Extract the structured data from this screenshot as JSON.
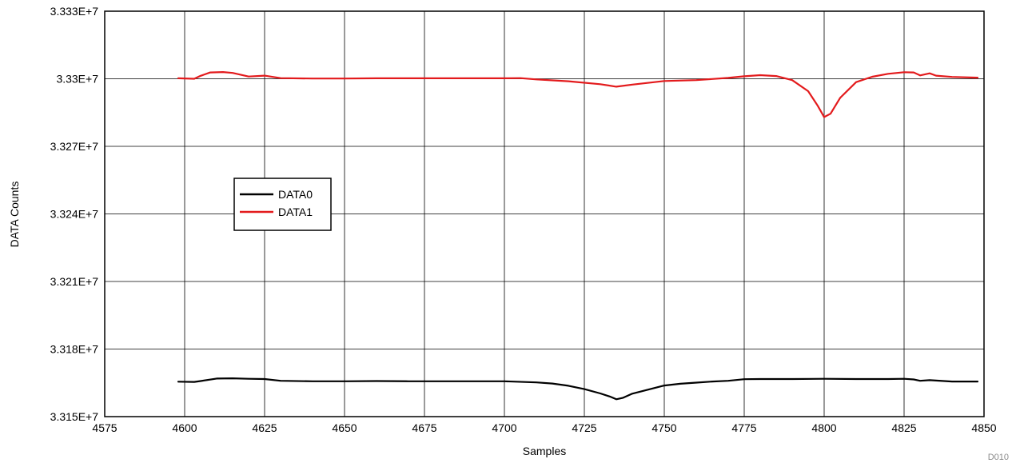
{
  "figure_id": "D010",
  "chart_data": {
    "type": "line",
    "title": "",
    "xlabel": "Samples",
    "ylabel": "DATA Counts",
    "xlim": [
      4575,
      4850
    ],
    "ylim": [
      33150000,
      33330000
    ],
    "x_ticks": [
      4575,
      4600,
      4625,
      4650,
      4675,
      4700,
      4725,
      4750,
      4775,
      4800,
      4825,
      4850
    ],
    "y_ticks": [
      33150000,
      33180000,
      33210000,
      33240000,
      33270000,
      33300000,
      33330000
    ],
    "x_tick_labels": [
      "4575",
      "4600",
      "4625",
      "4650",
      "4675",
      "4700",
      "4725",
      "4750",
      "4775",
      "4800",
      "4825",
      "4850"
    ],
    "y_tick_labels": [
      "3.315E+7",
      "3.318E+7",
      "3.321E+7",
      "3.324E+7",
      "3.327E+7",
      "3.33E+7",
      "3.333E+7"
    ],
    "grid": true,
    "legend": {
      "position": "center-left",
      "entries": [
        "DATA0",
        "DATA1"
      ]
    },
    "series": [
      {
        "name": "DATA0",
        "color": "#000000",
        "x": [
          4598,
          4603,
          4605,
          4610,
          4615,
          4620,
          4625,
          4630,
          4640,
          4650,
          4660,
          4670,
          4680,
          4690,
          4700,
          4710,
          4715,
          4720,
          4725,
          4730,
          4733,
          4735,
          4737,
          4740,
          4745,
          4750,
          4755,
          4760,
          4765,
          4770,
          4775,
          4780,
          4790,
          4800,
          4810,
          4820,
          4825,
          4828,
          4830,
          4833,
          4840,
          4848
        ],
        "y": [
          33165500,
          33165400,
          33165800,
          33166900,
          33167000,
          33166800,
          33166700,
          33165900,
          33165700,
          33165700,
          33165800,
          33165700,
          33165700,
          33165700,
          33165700,
          33165200,
          33164700,
          33163700,
          33162200,
          33160300,
          33158900,
          33157700,
          33158300,
          33160200,
          33162000,
          33163800,
          33164600,
          33165100,
          33165600,
          33165900,
          33166600,
          33166700,
          33166700,
          33166800,
          33166700,
          33166700,
          33166800,
          33166500,
          33165900,
          33166200,
          33165600,
          33165600
        ]
      },
      {
        "name": "DATA1",
        "color": "#e31a1c",
        "x": [
          4598,
          4603,
          4605,
          4608,
          4612,
          4615,
          4620,
          4625,
          4630,
          4640,
          4650,
          4660,
          4670,
          4680,
          4690,
          4700,
          4705,
          4710,
          4720,
          4730,
          4735,
          4740,
          4750,
          4760,
          4770,
          4775,
          4780,
          4785,
          4790,
          4795,
          4798,
          4800,
          4802,
          4805,
          4810,
          4815,
          4820,
          4825,
          4828,
          4830,
          4833,
          4835,
          4840,
          4848
        ],
        "y": [
          33300200,
          33300000,
          33301300,
          33302800,
          33303000,
          33302600,
          33301000,
          33301400,
          33300300,
          33300100,
          33300100,
          33300200,
          33300200,
          33300200,
          33300200,
          33300200,
          33300300,
          33299700,
          33298900,
          33297600,
          33296500,
          33297400,
          33299000,
          33299400,
          33300400,
          33301100,
          33301600,
          33301200,
          33299400,
          33294500,
          33288000,
          33283000,
          33284500,
          33291500,
          33298500,
          33300900,
          33302200,
          33302900,
          33302800,
          33301500,
          33302400,
          33301400,
          33300800,
          33300500
        ]
      }
    ]
  }
}
